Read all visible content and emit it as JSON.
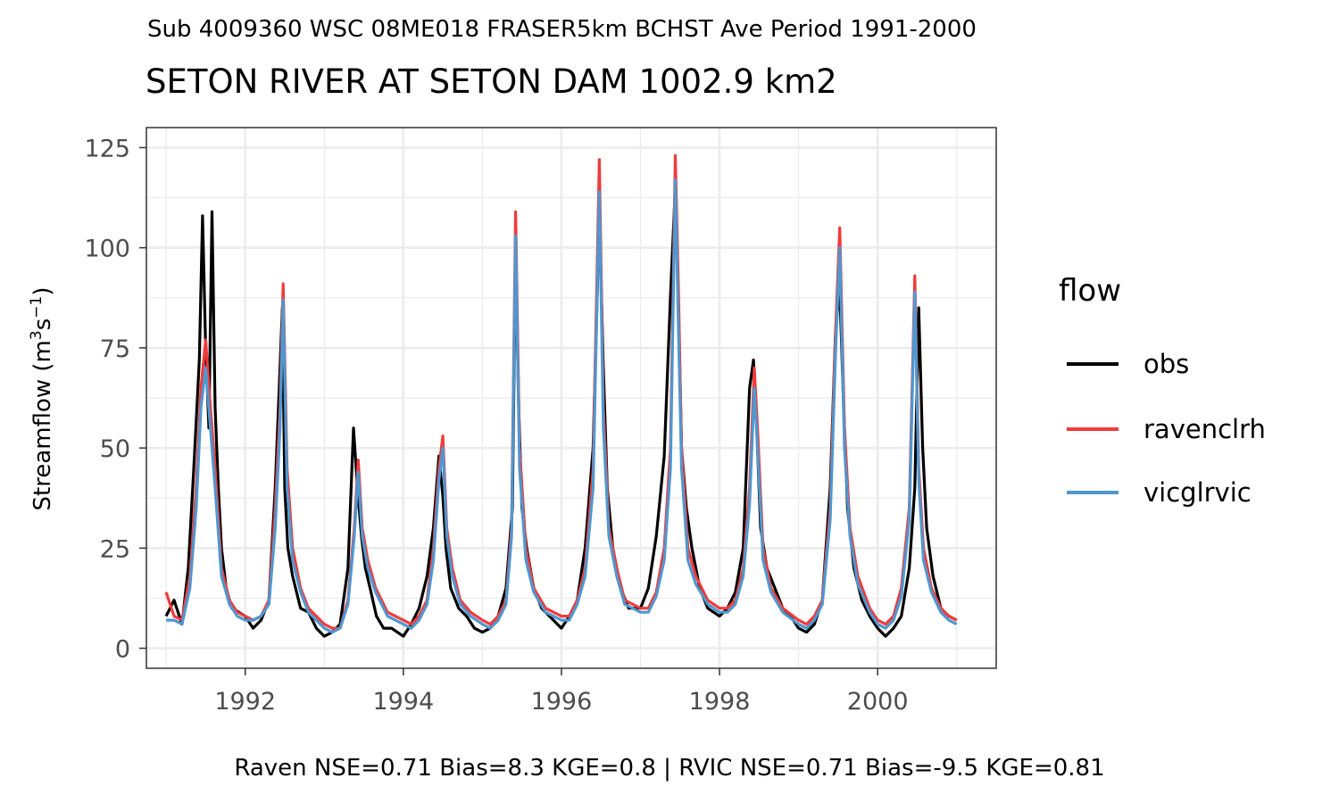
{
  "subtitle": "Sub 4009360 WSC 08ME018 FRASER5km BCHST Ave Period 1991-2000",
  "title": "SETON RIVER AT SETON DAM 1002.9 km2",
  "caption": "Raven NSE=0.71 Bias=8.3 KGE=0.8 | RVIC NSE=0.71 Bias=-9.5 KGE=0.81",
  "ylabel": {
    "base": "Streamflow (m",
    "sup1": "3",
    "mid": "s",
    "sup2": "−1",
    "end": ")"
  },
  "legend": {
    "title": "flow",
    "items": [
      {
        "label": "obs",
        "color": "#000000"
      },
      {
        "label": "ravenclrh",
        "color": "#f03b3b"
      },
      {
        "label": "vicglrvic",
        "color": "#5097cf"
      }
    ]
  },
  "chart_data": {
    "type": "line",
    "xlabel": "",
    "ylabel": "Streamflow (m3s-1)",
    "xlim": [
      1990.75,
      2001.5
    ],
    "ylim": [
      -5,
      130
    ],
    "x_ticks": [
      "1992",
      "1994",
      "1996",
      "1998",
      "2000"
    ],
    "y_ticks": [
      "0",
      "25",
      "50",
      "75",
      "100",
      "125"
    ],
    "grid": true,
    "legend_position": "right",
    "series": [
      {
        "name": "obs",
        "color": "#000000",
        "x": [
          1991.0,
          1991.1,
          1991.2,
          1991.28,
          1991.35,
          1991.42,
          1991.46,
          1991.5,
          1991.54,
          1991.58,
          1991.62,
          1991.66,
          1991.7,
          1991.76,
          1991.83,
          1991.92,
          1992.0,
          1992.1,
          1992.2,
          1992.3,
          1992.38,
          1992.43,
          1992.47,
          1992.5,
          1992.54,
          1992.6,
          1992.7,
          1992.8,
          1992.9,
          1993.0,
          1993.1,
          1993.2,
          1993.3,
          1993.37,
          1993.42,
          1993.47,
          1993.52,
          1993.58,
          1993.66,
          1993.75,
          1993.85,
          1994.0,
          1994.1,
          1994.2,
          1994.3,
          1994.38,
          1994.45,
          1994.5,
          1994.54,
          1994.6,
          1994.7,
          1994.8,
          1994.9,
          1995.0,
          1995.1,
          1995.2,
          1995.3,
          1995.38,
          1995.42,
          1995.46,
          1995.5,
          1995.56,
          1995.65,
          1995.75,
          1995.85,
          1996.0,
          1996.1,
          1996.2,
          1996.3,
          1996.4,
          1996.48,
          1996.53,
          1996.58,
          1996.65,
          1996.75,
          1996.85,
          1997.0,
          1997.1,
          1997.2,
          1997.3,
          1997.38,
          1997.44,
          1997.48,
          1997.52,
          1997.58,
          1997.65,
          1997.75,
          1997.85,
          1998.0,
          1998.1,
          1998.2,
          1998.3,
          1998.38,
          1998.43,
          1998.47,
          1998.52,
          1998.6,
          1998.7,
          1998.8,
          1998.9,
          1999.0,
          1999.1,
          1999.2,
          1999.3,
          1999.4,
          1999.47,
          1999.52,
          1999.57,
          1999.62,
          1999.7,
          1999.8,
          1999.9,
          2000.0,
          2000.1,
          2000.2,
          2000.3,
          2000.4,
          2000.47,
          2000.52,
          2000.57,
          2000.62,
          2000.7,
          2000.8,
          2000.9,
          2001.0
        ],
        "y": [
          8,
          12,
          6,
          20,
          45,
          72,
          108,
          75,
          55,
          109,
          60,
          40,
          25,
          15,
          10,
          9,
          8,
          5,
          7,
          12,
          40,
          65,
          85,
          40,
          25,
          18,
          10,
          9,
          5,
          3,
          4,
          6,
          20,
          55,
          40,
          28,
          20,
          15,
          8,
          5,
          5,
          3,
          6,
          10,
          18,
          30,
          48,
          38,
          25,
          15,
          10,
          8,
          5,
          4,
          5,
          8,
          15,
          35,
          100,
          60,
          35,
          25,
          15,
          10,
          8,
          5,
          8,
          12,
          25,
          50,
          108,
          70,
          40,
          25,
          15,
          10,
          10,
          15,
          28,
          48,
          88,
          115,
          85,
          50,
          35,
          25,
          15,
          10,
          8,
          10,
          14,
          25,
          65,
          72,
          55,
          30,
          20,
          15,
          10,
          8,
          5,
          4,
          6,
          12,
          40,
          80,
          90,
          60,
          35,
          20,
          12,
          8,
          5,
          3,
          5,
          8,
          20,
          40,
          85,
          50,
          30,
          18,
          10,
          8,
          7
        ]
      },
      {
        "name": "ravenclrh",
        "color": "#f03b3b",
        "x": [
          1991.0,
          1991.1,
          1991.2,
          1991.3,
          1991.38,
          1991.44,
          1991.5,
          1991.56,
          1991.62,
          1991.7,
          1991.8,
          1991.9,
          1992.0,
          1992.1,
          1992.2,
          1992.3,
          1992.38,
          1992.44,
          1992.48,
          1992.53,
          1992.6,
          1992.7,
          1992.8,
          1992.9,
          1993.0,
          1993.1,
          1993.2,
          1993.3,
          1993.38,
          1993.43,
          1993.48,
          1993.55,
          1993.65,
          1993.8,
          1994.0,
          1994.1,
          1994.2,
          1994.3,
          1994.38,
          1994.45,
          1994.5,
          1994.55,
          1994.62,
          1994.72,
          1994.85,
          1995.0,
          1995.1,
          1995.2,
          1995.3,
          1995.37,
          1995.42,
          1995.47,
          1995.55,
          1995.65,
          1995.8,
          1996.0,
          1996.1,
          1996.2,
          1996.3,
          1996.4,
          1996.48,
          1996.53,
          1996.6,
          1996.7,
          1996.8,
          1997.0,
          1997.1,
          1997.2,
          1997.3,
          1997.38,
          1997.44,
          1997.48,
          1997.52,
          1997.6,
          1997.7,
          1997.85,
          1998.0,
          1998.1,
          1998.2,
          1998.3,
          1998.38,
          1998.44,
          1998.48,
          1998.55,
          1998.65,
          1998.8,
          1999.0,
          1999.1,
          1999.2,
          1999.3,
          1999.4,
          1999.47,
          1999.52,
          1999.58,
          1999.65,
          1999.75,
          1999.9,
          2000.0,
          2000.1,
          2000.2,
          2000.3,
          2000.4,
          2000.47,
          2000.52,
          2000.58,
          2000.68,
          2000.8,
          2000.9,
          2001.0
        ],
        "y": [
          14,
          8,
          7,
          18,
          40,
          65,
          77,
          60,
          45,
          20,
          12,
          9,
          8,
          7,
          8,
          12,
          35,
          60,
          91,
          45,
          25,
          15,
          10,
          8,
          6,
          5,
          5,
          12,
          30,
          47,
          30,
          22,
          15,
          9,
          7,
          6,
          8,
          12,
          25,
          45,
          53,
          30,
          20,
          12,
          9,
          7,
          6,
          8,
          12,
          30,
          109,
          50,
          25,
          15,
          10,
          8,
          8,
          12,
          20,
          45,
          122,
          60,
          30,
          20,
          12,
          10,
          10,
          14,
          25,
          50,
          123,
          90,
          50,
          25,
          18,
          12,
          10,
          10,
          12,
          20,
          40,
          70,
          55,
          25,
          15,
          10,
          7,
          6,
          8,
          12,
          35,
          80,
          105,
          55,
          30,
          18,
          10,
          7,
          6,
          8,
          15,
          35,
          93,
          45,
          25,
          15,
          10,
          8,
          7
        ]
      },
      {
        "name": "vicglrvic",
        "color": "#5097cf",
        "x": [
          1991.0,
          1991.1,
          1991.2,
          1991.3,
          1991.38,
          1991.44,
          1991.5,
          1991.56,
          1991.62,
          1991.7,
          1991.8,
          1991.9,
          1992.0,
          1992.1,
          1992.2,
          1992.3,
          1992.38,
          1992.44,
          1992.48,
          1992.53,
          1992.6,
          1992.7,
          1992.8,
          1992.9,
          1993.0,
          1993.1,
          1993.2,
          1993.3,
          1993.38,
          1993.43,
          1993.48,
          1993.55,
          1993.65,
          1993.8,
          1994.0,
          1994.1,
          1994.2,
          1994.3,
          1994.38,
          1994.45,
          1994.5,
          1994.55,
          1994.62,
          1994.72,
          1994.85,
          1995.0,
          1995.1,
          1995.2,
          1995.3,
          1995.37,
          1995.42,
          1995.47,
          1995.55,
          1995.65,
          1995.8,
          1996.0,
          1996.1,
          1996.2,
          1996.3,
          1996.4,
          1996.48,
          1996.53,
          1996.6,
          1996.7,
          1996.8,
          1997.0,
          1997.1,
          1997.2,
          1997.3,
          1997.38,
          1997.44,
          1997.48,
          1997.52,
          1997.6,
          1997.7,
          1997.85,
          1998.0,
          1998.1,
          1998.2,
          1998.3,
          1998.38,
          1998.44,
          1998.48,
          1998.55,
          1998.65,
          1998.8,
          1999.0,
          1999.1,
          1999.2,
          1999.3,
          1999.4,
          1999.47,
          1999.52,
          1999.58,
          1999.65,
          1999.75,
          1999.9,
          2000.0,
          2000.1,
          2000.2,
          2000.3,
          2000.4,
          2000.47,
          2000.52,
          2000.58,
          2000.68,
          2000.8,
          2000.9,
          2001.0
        ],
        "y": [
          7,
          7,
          6,
          15,
          35,
          60,
          70,
          55,
          40,
          18,
          11,
          8,
          7,
          7,
          8,
          11,
          30,
          55,
          87,
          40,
          22,
          14,
          9,
          7,
          5,
          4,
          5,
          11,
          28,
          44,
          28,
          20,
          14,
          8,
          6,
          5,
          7,
          11,
          22,
          42,
          50,
          28,
          18,
          11,
          8,
          6,
          5,
          7,
          11,
          28,
          103,
          45,
          22,
          14,
          9,
          7,
          7,
          11,
          18,
          40,
          114,
          55,
          28,
          18,
          11,
          9,
          9,
          13,
          22,
          45,
          117,
          80,
          45,
          22,
          16,
          11,
          9,
          9,
          11,
          18,
          36,
          65,
          50,
          22,
          14,
          9,
          6,
          5,
          7,
          11,
          32,
          75,
          100,
          50,
          28,
          16,
          9,
          6,
          5,
          7,
          13,
          32,
          89,
          42,
          22,
          14,
          9,
          7,
          6
        ]
      }
    ]
  }
}
